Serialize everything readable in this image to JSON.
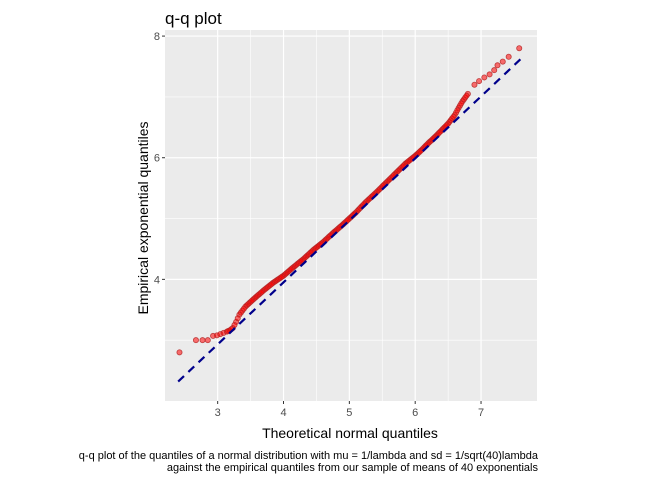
{
  "chart_data": {
    "type": "scatter",
    "title": "q-q plot",
    "xlabel": "Theoretical normal quantiles",
    "ylabel": "Empirical exponential quantiles",
    "caption_lines": [
      "q-q plot of the quantiles of a normal distribution with mu = 1/lambda and sd = 1/sqrt(40)lambda",
      "against the empirical quantiles from our sample of means of 40 exponentials"
    ],
    "xlim": [
      2.2,
      7.85
    ],
    "ylim": [
      2.0,
      8.1
    ],
    "x_ticks": [
      3,
      4,
      5,
      6,
      7
    ],
    "y_ticks": [
      4,
      6,
      8
    ],
    "grid": true,
    "point_color": "#ff0000",
    "point_outline": "#b22222",
    "line_color": "#00008b",
    "panel_background": "#ebebeb",
    "reference_line": {
      "x": [
        2.4,
        7.6
      ],
      "y": [
        2.32,
        7.62
      ],
      "style": "dashed"
    },
    "series": [
      {
        "points": [
          [
            2.42,
            2.8
          ],
          [
            2.67,
            3.0
          ],
          [
            2.77,
            3.0
          ],
          [
            2.85,
            3.0
          ],
          [
            2.93,
            3.07
          ],
          [
            2.99,
            3.08
          ],
          [
            3.04,
            3.1
          ],
          [
            3.09,
            3.12
          ],
          [
            3.14,
            3.14
          ],
          [
            3.18,
            3.16
          ],
          [
            3.23,
            3.2
          ],
          [
            3.28,
            3.3
          ],
          [
            3.33,
            3.42
          ],
          [
            3.42,
            3.55
          ],
          [
            3.55,
            3.68
          ],
          [
            3.7,
            3.82
          ],
          [
            3.85,
            3.95
          ],
          [
            4.0,
            4.06
          ],
          [
            4.15,
            4.2
          ],
          [
            4.3,
            4.33
          ],
          [
            4.45,
            4.48
          ],
          [
            4.6,
            4.61
          ],
          [
            4.75,
            4.76
          ],
          [
            4.9,
            4.9
          ],
          [
            5.0,
            5.0
          ],
          [
            5.1,
            5.1
          ],
          [
            5.25,
            5.27
          ],
          [
            5.4,
            5.42
          ],
          [
            5.55,
            5.58
          ],
          [
            5.7,
            5.74
          ],
          [
            5.85,
            5.9
          ],
          [
            6.0,
            6.03
          ],
          [
            6.1,
            6.13
          ],
          [
            6.2,
            6.24
          ],
          [
            6.3,
            6.34
          ],
          [
            6.4,
            6.45
          ],
          [
            6.5,
            6.56
          ],
          [
            6.6,
            6.7
          ],
          [
            6.66,
            6.82
          ],
          [
            6.72,
            6.93
          ],
          [
            6.8,
            7.05
          ],
          [
            6.9,
            7.2
          ],
          [
            6.97,
            7.26
          ],
          [
            7.05,
            7.32
          ],
          [
            7.13,
            7.37
          ],
          [
            7.2,
            7.44
          ],
          [
            7.25,
            7.52
          ],
          [
            7.33,
            7.58
          ],
          [
            7.42,
            7.66
          ],
          [
            7.58,
            7.8
          ]
        ]
      }
    ]
  }
}
